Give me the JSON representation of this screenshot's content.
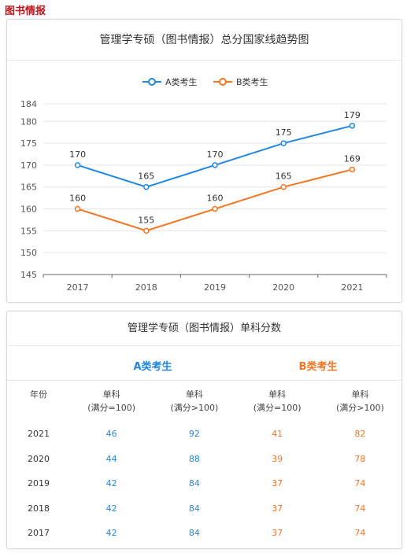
{
  "page_heading": "图书情报",
  "chart_title": "管理学专硕（图书情报）总分国家线趋势图",
  "colors": {
    "series_a": "#1e88e5",
    "series_b": "#f47521",
    "heading": "#c0141b"
  },
  "chart_data": {
    "type": "line",
    "x": [
      "2017",
      "2018",
      "2019",
      "2020",
      "2021"
    ],
    "series": [
      {
        "name": "A类考生",
        "values": [
          170,
          165,
          170,
          175,
          179
        ]
      },
      {
        "name": "B类考生",
        "values": [
          160,
          155,
          160,
          165,
          169
        ]
      }
    ],
    "yticks": [
      145,
      150,
      155,
      160,
      165,
      170,
      175,
      180,
      184
    ],
    "ylim": [
      145,
      184
    ],
    "legend": "top-center",
    "grid": true
  },
  "table": {
    "title": "管理学专硕（图书情报）单科分数",
    "group_a": "A类考生",
    "group_b": "B类考生",
    "headers": [
      [
        "年份",
        ""
      ],
      [
        "单科",
        "(满分=100)"
      ],
      [
        "单科",
        "(满分>100)"
      ],
      [
        "单科",
        "(满分=100)"
      ],
      [
        "单科",
        "(满分>100)"
      ]
    ],
    "rows": [
      [
        "2021",
        "46",
        "92",
        "41",
        "82"
      ],
      [
        "2020",
        "44",
        "88",
        "39",
        "78"
      ],
      [
        "2019",
        "42",
        "84",
        "37",
        "74"
      ],
      [
        "2018",
        "42",
        "84",
        "37",
        "74"
      ],
      [
        "2017",
        "42",
        "84",
        "37",
        "74"
      ]
    ]
  }
}
